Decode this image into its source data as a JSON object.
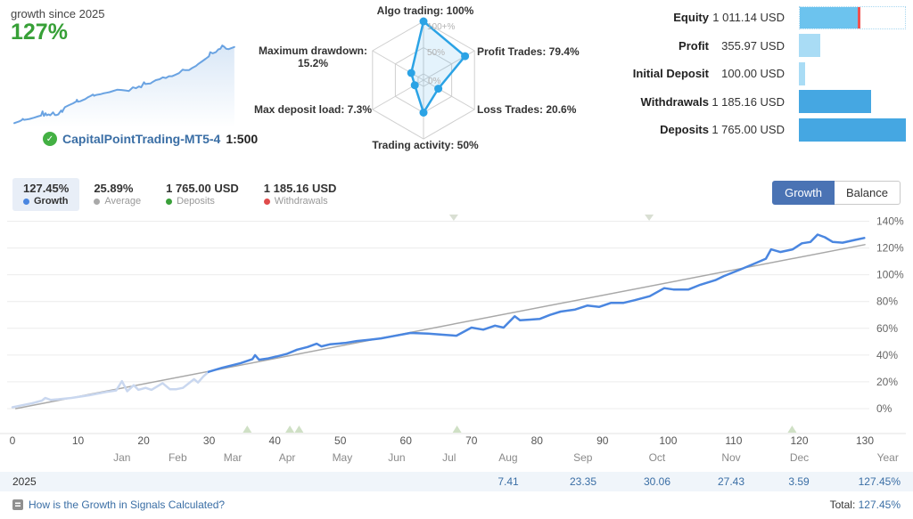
{
  "summary": {
    "growth_label": "growth since 2025",
    "growth_value": "127%",
    "signal_name": "CapitalPointTrading-MT5-4",
    "leverage": "1:500"
  },
  "radar": {
    "line_color": "#2ba3e5",
    "fill_color": "rgba(43,163,229,0.13)",
    "grid_color": "#cfcfcf",
    "ring_labels": [
      "100+%",
      "50%",
      "0%"
    ],
    "axes": [
      {
        "label": "Algo trading: 100%",
        "value": 100
      },
      {
        "label": "Profit Trades: 79.4%",
        "value": 79.4
      },
      {
        "label": "Loss Trades: 20.6%",
        "value": 20.6
      },
      {
        "label": "Trading activity: 50%",
        "value": 50
      },
      {
        "label": "Max deposit load: 7.3%",
        "value": 7.3
      },
      {
        "label": "Maximum drawdown: 15.2%",
        "value": 15.2
      }
    ]
  },
  "stats": {
    "max_amount": 1765,
    "colors": {
      "light": "#a9dcf5",
      "dark": "#45a7e2",
      "equity": "#6cc3ee",
      "marker": "#ef5350"
    },
    "rows": [
      {
        "label": "Equity",
        "value": "1 011.14 USD",
        "amount": 1011.14,
        "style": "equity"
      },
      {
        "label": "Profit",
        "value": "355.97 USD",
        "amount": 355.97,
        "style": "light"
      },
      {
        "label": "Initial Deposit",
        "value": "100.00 USD",
        "amount": 100,
        "style": "light"
      },
      {
        "label": "Withdrawals",
        "value": "1 185.16 USD",
        "amount": 1185.16,
        "style": "dark"
      },
      {
        "label": "Deposits",
        "value": "1 765.00 USD",
        "amount": 1765,
        "style": "dark"
      }
    ]
  },
  "legend": {
    "items": [
      {
        "value": "127.45%",
        "label": "Growth",
        "dot_color": "#4a86e0",
        "selected": true
      },
      {
        "value": "25.89%",
        "label": "Average",
        "dot_color": "#a9a9a9",
        "selected": false
      },
      {
        "value": "1 765.00 USD",
        "label": "Deposits",
        "dot_color": "#3aa03a",
        "selected": false
      },
      {
        "value": "1 185.16 USD",
        "label": "Withdrawals",
        "dot_color": "#e04b4b",
        "selected": false
      }
    ]
  },
  "toolbar": {
    "growth_label": "Growth",
    "balance_label": "Balance"
  },
  "chart_data": {
    "type": "line",
    "ylim": [
      0,
      140
    ],
    "grid": true,
    "yticks": [
      "0%",
      "20%",
      "40%",
      "60%",
      "80%",
      "100%",
      "120%",
      "140%"
    ],
    "ytick_values": [
      0,
      20,
      40,
      60,
      80,
      100,
      120,
      140
    ],
    "xticks": [
      0,
      10,
      20,
      30,
      40,
      50,
      60,
      70,
      80,
      90,
      100,
      110,
      120,
      130
    ],
    "months": [
      {
        "label": "Jan",
        "t": 16.7
      },
      {
        "label": "Feb",
        "t": 25.2
      },
      {
        "label": "Mar",
        "t": 33.6
      },
      {
        "label": "Apr",
        "t": 41.9
      },
      {
        "label": "May",
        "t": 50.3
      },
      {
        "label": "Jun",
        "t": 58.6
      },
      {
        "label": "Jul",
        "t": 66.6
      },
      {
        "label": "Aug",
        "t": 75.6
      },
      {
        "label": "Sep",
        "t": 87.0
      },
      {
        "label": "Oct",
        "t": 98.3
      },
      {
        "label": "Nov",
        "t": 109.6
      },
      {
        "label": "Dec",
        "t": 120.0
      },
      {
        "label": "Year",
        "t": 133.5
      }
    ],
    "series": [
      {
        "name": "growth-early",
        "color": "#c9d7ef",
        "width": 2.5,
        "points": [
          [
            0,
            1
          ],
          [
            1.5,
            2.5
          ],
          [
            3,
            4
          ],
          [
            4.5,
            6
          ],
          [
            5,
            8
          ],
          [
            5.8,
            6.5
          ],
          [
            7,
            7
          ],
          [
            9,
            8
          ],
          [
            11.7,
            10
          ],
          [
            14.4,
            12.5
          ],
          [
            15.8,
            13.5
          ],
          [
            16.7,
            20.5
          ],
          [
            17.5,
            13
          ],
          [
            18.5,
            17.5
          ],
          [
            19.2,
            14
          ],
          [
            20.3,
            15.5
          ],
          [
            21.2,
            14
          ],
          [
            22.9,
            19
          ],
          [
            24,
            14.5
          ],
          [
            25,
            14.5
          ],
          [
            26,
            15.5
          ],
          [
            27.7,
            22
          ],
          [
            28.3,
            19.5
          ],
          [
            29.1,
            24
          ],
          [
            29.9,
            27.5
          ]
        ]
      },
      {
        "name": "growth",
        "color": "#4a86e0",
        "width": 2.5,
        "points": [
          [
            29.9,
            27.5
          ],
          [
            32,
            30.5
          ],
          [
            34.8,
            34
          ],
          [
            36.6,
            37
          ],
          [
            37,
            40
          ],
          [
            37.6,
            36.5
          ],
          [
            39,
            37.5
          ],
          [
            40.3,
            39
          ],
          [
            41.9,
            41
          ],
          [
            43.4,
            44
          ],
          [
            45,
            46
          ],
          [
            46.4,
            48.5
          ],
          [
            47.1,
            46.5
          ],
          [
            48.4,
            48
          ],
          [
            50.7,
            49
          ],
          [
            52.5,
            50.5
          ],
          [
            54.5,
            51.5
          ],
          [
            56.2,
            52.5
          ],
          [
            57.9,
            54
          ],
          [
            60.7,
            56.5
          ],
          [
            63.4,
            56
          ],
          [
            66.1,
            55
          ],
          [
            67.7,
            54.5
          ],
          [
            70,
            60.5
          ],
          [
            71.8,
            59
          ],
          [
            73.6,
            62
          ],
          [
            74.9,
            60.5
          ],
          [
            76.6,
            69
          ],
          [
            77.4,
            66
          ],
          [
            79,
            66.5
          ],
          [
            80.4,
            67
          ],
          [
            82,
            70
          ],
          [
            83.6,
            72.5
          ],
          [
            85.8,
            74
          ],
          [
            87.7,
            77
          ],
          [
            89.5,
            76
          ],
          [
            91.3,
            79
          ],
          [
            93.2,
            79
          ],
          [
            94.9,
            81
          ],
          [
            97.2,
            84
          ],
          [
            99.4,
            90
          ],
          [
            100.8,
            89
          ],
          [
            103.1,
            89
          ],
          [
            104.9,
            92.5
          ],
          [
            107.2,
            96
          ],
          [
            108.5,
            99
          ],
          [
            110.8,
            103.5
          ],
          [
            113,
            108
          ],
          [
            114.9,
            112
          ],
          [
            115.7,
            119
          ],
          [
            117.1,
            117
          ],
          [
            119,
            119
          ],
          [
            120.4,
            123.5
          ],
          [
            121.7,
            124.5
          ],
          [
            122.8,
            130
          ],
          [
            123.9,
            128
          ],
          [
            125.1,
            124.5
          ],
          [
            126.6,
            124
          ],
          [
            128.5,
            126
          ],
          [
            129.9,
            127.5
          ]
        ]
      },
      {
        "name": "trend",
        "color": "#a8a8a8",
        "width": 1.5,
        "points": [
          [
            0.5,
            0
          ],
          [
            130,
            122.5
          ]
        ]
      }
    ],
    "markers": {
      "deposit_color": "#cfe0c5",
      "withdrawal_color": "#d9dfd3",
      "deposits_t": [
        35.8,
        42.3,
        43.7,
        67.8,
        118.9
      ],
      "withdrawals_t": [
        67.3,
        97.1
      ]
    }
  },
  "table": {
    "year": "2025",
    "monthly": [
      {
        "month": "Aug",
        "value": "7.41"
      },
      {
        "month": "Sep",
        "value": "23.35"
      },
      {
        "month": "Oct",
        "value": "30.06"
      },
      {
        "month": "Nov",
        "value": "27.43"
      },
      {
        "month": "Dec",
        "value": "3.59"
      }
    ],
    "year_total": "127.45%"
  },
  "footer": {
    "help_label": "How is the Growth in Signals Calculated?",
    "total_label": "Total:",
    "total_value": "127.45%"
  }
}
